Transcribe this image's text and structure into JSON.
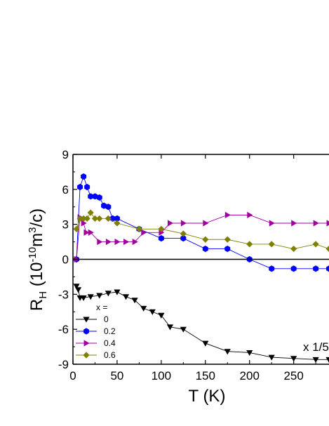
{
  "chart_data": {
    "type": "scatter",
    "title": "",
    "xlabel": "T (K)",
    "ylabel_main": "R",
    "ylabel_sub": "H",
    "ylabel_rest": " (10",
    "ylabel_exp": "-10",
    "ylabel_unit": "m",
    "ylabel_unit_exp": "3",
    "ylabel_tail": "/c)",
    "xlim": [
      0,
      290
    ],
    "ylim": [
      -9,
      9
    ],
    "xticks": [
      0,
      50,
      100,
      150,
      200,
      250
    ],
    "xtick_labels": [
      "0",
      "50",
      "100",
      "150",
      "200",
      "250"
    ],
    "yticks": [
      -9,
      -6,
      -3,
      0,
      3,
      6,
      9
    ],
    "ytick_labels": [
      "-9",
      "-6",
      "-3",
      "0",
      "3",
      "6",
      "9"
    ],
    "zero_line": true,
    "annotation": "x 1/5",
    "legend_title": "x =",
    "legend_position": "bottom-left",
    "series": [
      {
        "name": "0",
        "color": "#000000",
        "marker": "triangle-down",
        "x": [
          4,
          6,
          8,
          12,
          20,
          30,
          40,
          50,
          60,
          70,
          80,
          90,
          100,
          110,
          125,
          150,
          175,
          200,
          225,
          250,
          275,
          290
        ],
        "y": [
          -2.3,
          -2.6,
          -3.3,
          -3.3,
          -3.2,
          -3.1,
          -2.9,
          -2.8,
          -3.2,
          -3.5,
          -4.2,
          -4.5,
          -4.8,
          -5.8,
          -6,
          -7.2,
          -7.9,
          -8,
          -8.4,
          -8.5,
          -8.6,
          -8.6
        ]
      },
      {
        "name": "0.2",
        "color": "#0000ff",
        "marker": "hexagon",
        "x": [
          4,
          8,
          12,
          16,
          20,
          25,
          30,
          35,
          40,
          45,
          50,
          75,
          100,
          125,
          150,
          175,
          200,
          225,
          250,
          275,
          290
        ],
        "y": [
          0,
          6.2,
          7.1,
          6.2,
          5.4,
          5.4,
          5.3,
          4.6,
          4.5,
          3.5,
          3.5,
          2.6,
          1.8,
          1.8,
          0.9,
          0.9,
          0,
          -0.8,
          -0.8,
          -0.8,
          -0.8
        ]
      },
      {
        "name": "0.4",
        "color": "#a000a0",
        "marker": "triangle-right",
        "x": [
          4,
          8,
          12,
          15,
          20,
          30,
          40,
          50,
          60,
          70,
          80,
          100,
          110,
          125,
          150,
          175,
          200,
          225,
          250,
          275,
          290
        ],
        "y": [
          0,
          3.6,
          3.1,
          2.3,
          2.3,
          1.5,
          1.5,
          1.5,
          1.5,
          1.5,
          2.3,
          2.3,
          3.1,
          3.1,
          3.1,
          3.8,
          3.8,
          3.1,
          3.1,
          3.1,
          3.1
        ]
      },
      {
        "name": "0.6",
        "color": "#808000",
        "marker": "diamond",
        "x": [
          4,
          8,
          12,
          16,
          20,
          25,
          30,
          40,
          50,
          75,
          100,
          125,
          150,
          175,
          200,
          225,
          250,
          275,
          290
        ],
        "y": [
          2.6,
          3.5,
          3.5,
          3.5,
          4,
          3.5,
          3.5,
          3.5,
          3.1,
          2.6,
          2.6,
          2.2,
          1.7,
          1.7,
          1.3,
          1.3,
          0.9,
          1.3,
          0.9
        ]
      }
    ]
  }
}
